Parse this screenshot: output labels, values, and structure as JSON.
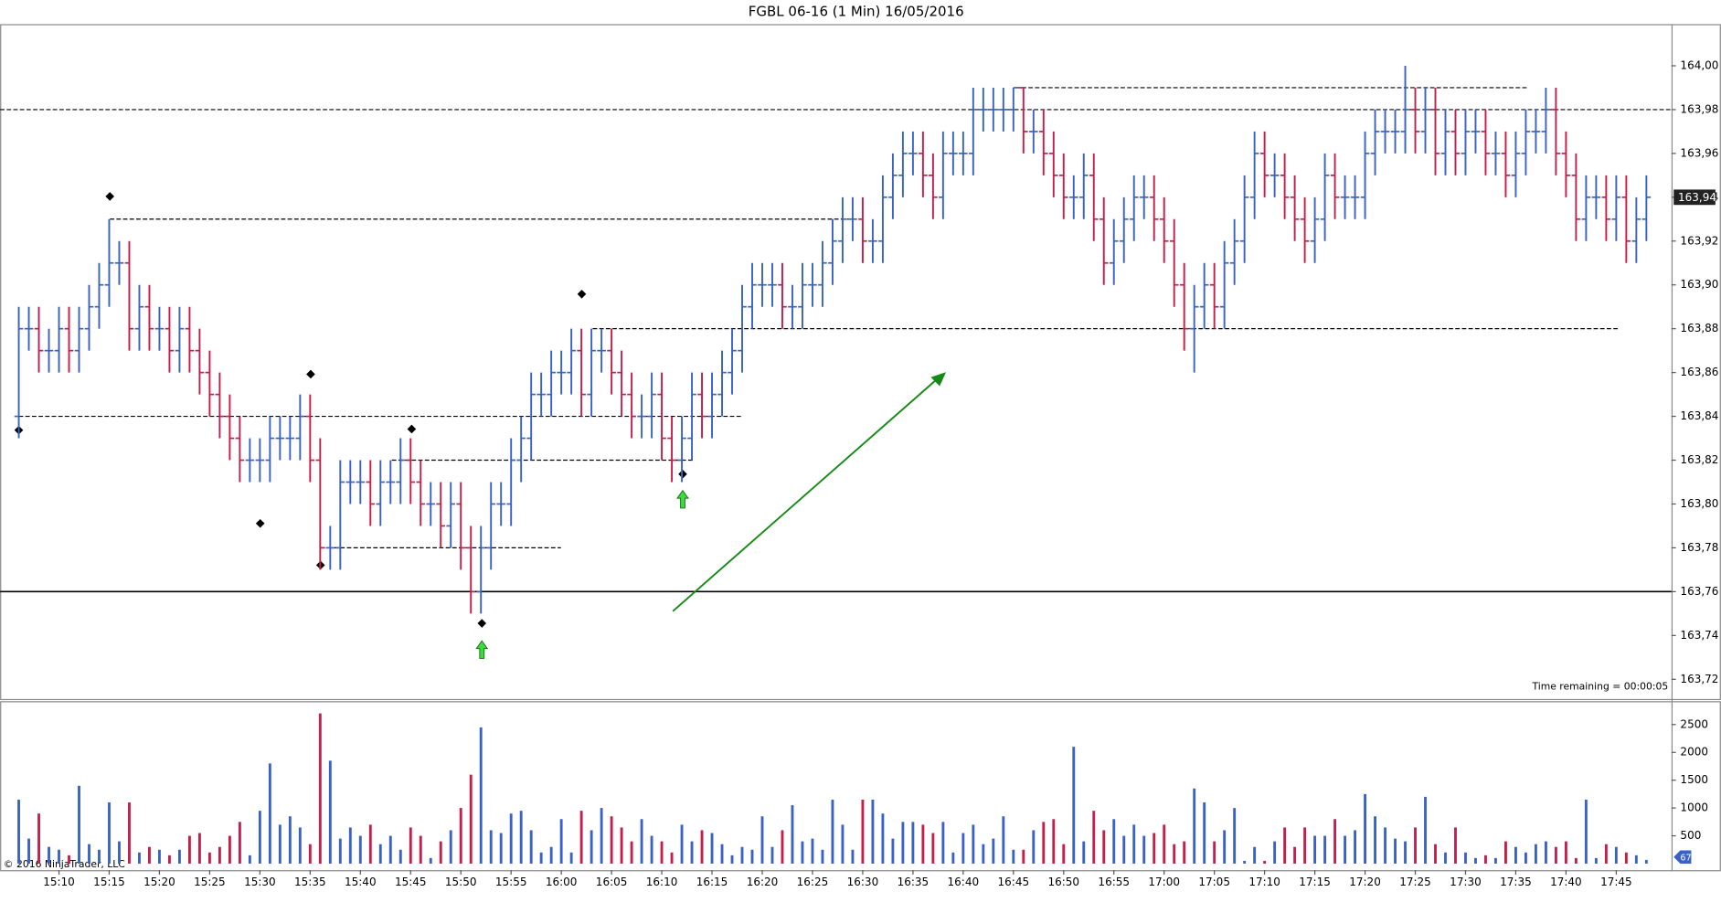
{
  "chart_data": {
    "type": "ohlc",
    "title": "FGBL 06-16 (1 Min)  16/05/2016",
    "categories": [
      null,
      null,
      null,
      null,
      "15:10",
      null,
      null,
      null,
      null,
      "15:15",
      null,
      null,
      null,
      null,
      "15:20",
      null,
      null,
      null,
      null,
      "15:25",
      null,
      null,
      null,
      null,
      "15:30",
      null,
      null,
      null,
      null,
      "15:35",
      null,
      null,
      null,
      null,
      "15:40",
      null,
      null,
      null,
      null,
      "15:45",
      null,
      null,
      null,
      null,
      "15:50",
      null,
      null,
      null,
      null,
      "15:55",
      null,
      null,
      null,
      null,
      "16:00",
      null,
      null,
      null,
      null,
      "16:05",
      null,
      null,
      null,
      null,
      "16:10",
      null,
      null,
      null,
      null,
      "16:15",
      null,
      null,
      null,
      null,
      "16:20",
      null,
      null,
      null,
      null,
      "16:25",
      null,
      null,
      null,
      null,
      "16:30",
      null,
      null,
      null,
      null,
      "16:35",
      null,
      null,
      null,
      null,
      "16:40",
      null,
      null,
      null,
      null,
      "16:45",
      null,
      null,
      null,
      null,
      "16:50",
      null,
      null,
      null,
      null,
      "16:55",
      null,
      null,
      null,
      null,
      "17:00",
      null,
      null,
      null,
      null,
      "17:05",
      null,
      null,
      null,
      null,
      "17:10",
      null,
      null,
      null,
      null,
      "17:15",
      null,
      null,
      null,
      null,
      "17:20",
      null,
      null,
      null,
      null,
      "17:25",
      null,
      null,
      null,
      null,
      "17:30",
      null,
      null,
      null,
      null,
      "17:35",
      null,
      null,
      null,
      null,
      "17:40",
      null,
      null,
      null,
      null,
      "17:45",
      null,
      null,
      null
    ],
    "open": [
      163.84,
      163.88,
      163.88,
      163.87,
      163.87,
      163.88,
      163.87,
      163.88,
      163.89,
      163.9,
      163.91,
      163.91,
      163.88,
      163.89,
      163.88,
      163.88,
      163.87,
      163.88,
      163.87,
      163.86,
      163.85,
      163.84,
      163.83,
      163.82,
      163.82,
      163.82,
      163.83,
      163.83,
      163.83,
      163.84,
      163.82,
      163.78,
      163.78,
      163.81,
      163.81,
      163.81,
      163.8,
      163.81,
      163.81,
      163.82,
      163.81,
      163.8,
      163.8,
      163.79,
      163.8,
      163.78,
      163.76,
      163.78,
      163.8,
      163.8,
      163.82,
      163.83,
      163.85,
      163.85,
      163.86,
      163.86,
      163.87,
      163.85,
      163.87,
      163.87,
      163.86,
      163.85,
      163.84,
      163.84,
      163.85,
      163.83,
      163.82,
      163.83,
      163.85,
      163.84,
      163.85,
      163.86,
      163.87,
      163.89,
      163.9,
      163.9,
      163.9,
      163.89,
      163.89,
      163.9,
      163.9,
      163.91,
      163.92,
      163.93,
      163.93,
      163.92,
      163.92,
      163.94,
      163.95,
      163.96,
      163.96,
      163.95,
      163.94,
      163.96,
      163.96,
      163.96,
      163.98,
      163.98,
      163.98,
      163.98,
      163.99,
      163.97,
      163.97,
      163.96,
      163.95,
      163.94,
      163.94,
      163.95,
      163.93,
      163.91,
      163.92,
      163.93,
      163.94,
      163.94,
      163.93,
      163.92,
      163.9,
      163.88,
      163.89,
      163.9,
      163.89,
      163.91,
      163.92,
      163.94,
      163.96,
      163.95,
      163.95,
      163.94,
      163.93,
      163.92,
      163.93,
      163.95,
      163.94,
      163.94,
      163.94,
      163.96,
      163.97,
      163.97,
      163.97,
      163.98,
      163.97,
      163.98,
      163.96,
      163.97,
      163.96,
      163.97,
      163.97,
      163.96,
      163.96,
      163.95,
      163.96,
      163.97,
      163.97,
      163.98,
      163.96,
      163.95,
      163.93,
      163.94,
      163.94,
      163.93,
      163.94,
      163.92,
      163.93
    ],
    "high": [
      163.89,
      163.89,
      163.89,
      163.88,
      163.89,
      163.89,
      163.89,
      163.9,
      163.91,
      163.93,
      163.92,
      163.92,
      163.9,
      163.9,
      163.89,
      163.89,
      163.89,
      163.89,
      163.88,
      163.87,
      163.86,
      163.85,
      163.84,
      163.83,
      163.83,
      163.84,
      163.84,
      163.84,
      163.85,
      163.85,
      163.83,
      163.79,
      163.82,
      163.82,
      163.82,
      163.82,
      163.82,
      163.82,
      163.83,
      163.83,
      163.82,
      163.81,
      163.81,
      163.81,
      163.81,
      163.79,
      163.79,
      163.81,
      163.81,
      163.83,
      163.84,
      163.86,
      163.86,
      163.87,
      163.87,
      163.88,
      163.88,
      163.88,
      163.88,
      163.88,
      163.87,
      163.86,
      163.85,
      163.86,
      163.86,
      163.84,
      163.84,
      163.86,
      163.86,
      163.86,
      163.87,
      163.88,
      163.9,
      163.91,
      163.91,
      163.91,
      163.91,
      163.9,
      163.91,
      163.91,
      163.92,
      163.93,
      163.94,
      163.94,
      163.94,
      163.93,
      163.95,
      163.96,
      163.97,
      163.97,
      163.97,
      163.96,
      163.97,
      163.97,
      163.97,
      163.99,
      163.99,
      163.99,
      163.99,
      163.99,
      163.99,
      163.98,
      163.98,
      163.97,
      163.96,
      163.95,
      163.96,
      163.96,
      163.94,
      163.93,
      163.94,
      163.95,
      163.95,
      163.95,
      163.94,
      163.93,
      163.91,
      163.9,
      163.91,
      163.91,
      163.92,
      163.93,
      163.95,
      163.97,
      163.97,
      163.96,
      163.96,
      163.95,
      163.94,
      163.94,
      163.96,
      163.96,
      163.95,
      163.95,
      163.97,
      163.98,
      163.98,
      163.98,
      164.0,
      163.99,
      163.99,
      163.99,
      163.98,
      163.98,
      163.98,
      163.98,
      163.98,
      163.97,
      163.97,
      163.97,
      163.98,
      163.98,
      163.99,
      163.99,
      163.97,
      163.96,
      163.95,
      163.95,
      163.95,
      163.95,
      163.95,
      163.94,
      163.95
    ],
    "low": [
      163.83,
      163.87,
      163.86,
      163.86,
      163.86,
      163.86,
      163.86,
      163.87,
      163.88,
      163.89,
      163.9,
      163.87,
      163.87,
      163.87,
      163.87,
      163.86,
      163.86,
      163.86,
      163.85,
      163.84,
      163.83,
      163.82,
      163.81,
      163.81,
      163.81,
      163.81,
      163.82,
      163.82,
      163.82,
      163.81,
      163.77,
      163.77,
      163.77,
      163.8,
      163.8,
      163.79,
      163.79,
      163.8,
      163.8,
      163.8,
      163.79,
      163.79,
      163.78,
      163.78,
      163.77,
      163.75,
      163.75,
      163.77,
      163.79,
      163.79,
      163.81,
      163.82,
      163.84,
      163.84,
      163.85,
      163.85,
      163.84,
      163.84,
      163.86,
      163.85,
      163.84,
      163.83,
      163.83,
      163.83,
      163.82,
      163.81,
      163.81,
      163.82,
      163.83,
      163.83,
      163.84,
      163.85,
      163.86,
      163.88,
      163.89,
      163.89,
      163.88,
      163.88,
      163.88,
      163.89,
      163.89,
      163.9,
      163.91,
      163.92,
      163.91,
      163.91,
      163.91,
      163.93,
      163.94,
      163.95,
      163.94,
      163.93,
      163.93,
      163.95,
      163.95,
      163.95,
      163.97,
      163.97,
      163.97,
      163.97,
      163.96,
      163.96,
      163.95,
      163.94,
      163.93,
      163.93,
      163.93,
      163.92,
      163.9,
      163.9,
      163.91,
      163.92,
      163.93,
      163.92,
      163.91,
      163.89,
      163.87,
      163.86,
      163.88,
      163.88,
      163.88,
      163.9,
      163.91,
      163.93,
      163.94,
      163.94,
      163.93,
      163.92,
      163.91,
      163.91,
      163.92,
      163.93,
      163.93,
      163.93,
      163.93,
      163.95,
      163.96,
      163.96,
      163.96,
      163.96,
      163.96,
      163.95,
      163.95,
      163.95,
      163.95,
      163.96,
      163.95,
      163.95,
      163.94,
      163.94,
      163.95,
      163.96,
      163.96,
      163.95,
      163.94,
      163.92,
      163.92,
      163.93,
      163.92,
      163.92,
      163.91,
      163.91,
      163.92
    ],
    "close": [
      163.88,
      163.88,
      163.87,
      163.87,
      163.88,
      163.87,
      163.88,
      163.89,
      163.9,
      163.91,
      163.91,
      163.88,
      163.89,
      163.88,
      163.88,
      163.87,
      163.88,
      163.87,
      163.86,
      163.85,
      163.84,
      163.83,
      163.82,
      163.82,
      163.82,
      163.83,
      163.83,
      163.83,
      163.84,
      163.82,
      163.78,
      163.78,
      163.81,
      163.81,
      163.81,
      163.8,
      163.81,
      163.81,
      163.82,
      163.81,
      163.8,
      163.8,
      163.79,
      163.8,
      163.78,
      163.76,
      163.78,
      163.8,
      163.8,
      163.82,
      163.83,
      163.85,
      163.85,
      163.86,
      163.86,
      163.87,
      163.85,
      163.87,
      163.87,
      163.86,
      163.85,
      163.84,
      163.84,
      163.85,
      163.83,
      163.82,
      163.83,
      163.85,
      163.84,
      163.85,
      163.86,
      163.87,
      163.89,
      163.9,
      163.9,
      163.9,
      163.89,
      163.89,
      163.9,
      163.9,
      163.91,
      163.92,
      163.93,
      163.93,
      163.92,
      163.92,
      163.94,
      163.95,
      163.96,
      163.96,
      163.95,
      163.94,
      163.96,
      163.96,
      163.96,
      163.98,
      163.98,
      163.98,
      163.98,
      163.99,
      163.97,
      163.97,
      163.96,
      163.95,
      163.94,
      163.94,
      163.95,
      163.93,
      163.91,
      163.92,
      163.93,
      163.94,
      163.94,
      163.93,
      163.92,
      163.9,
      163.88,
      163.89,
      163.9,
      163.89,
      163.91,
      163.92,
      163.94,
      163.96,
      163.95,
      163.95,
      163.94,
      163.93,
      163.92,
      163.93,
      163.95,
      163.94,
      163.94,
      163.94,
      163.96,
      163.97,
      163.97,
      163.97,
      163.98,
      163.97,
      163.98,
      163.96,
      163.97,
      163.96,
      163.97,
      163.97,
      163.96,
      163.96,
      163.95,
      163.96,
      163.97,
      163.97,
      163.98,
      163.96,
      163.95,
      163.93,
      163.94,
      163.94,
      163.93,
      163.94,
      163.92,
      163.93,
      163.94
    ],
    "up_color": "#3a62c6",
    "down_color": "#c41f4b",
    "ylim": [
      163.711,
      164.018
    ],
    "yticks": [
      {
        "value": 163.72,
        "label": "163,72"
      },
      {
        "value": 163.74,
        "label": "163,74"
      },
      {
        "value": 163.76,
        "label": "163,76"
      },
      {
        "value": 163.78,
        "label": "163,78"
      },
      {
        "value": 163.8,
        "label": "163,80"
      },
      {
        "value": 163.82,
        "label": "163,82"
      },
      {
        "value": 163.84,
        "label": "163,84"
      },
      {
        "value": 163.86,
        "label": "163,86"
      },
      {
        "value": 163.88,
        "label": "163,88"
      },
      {
        "value": 163.9,
        "label": "163,90"
      },
      {
        "value": 163.92,
        "label": "163,92"
      },
      {
        "value": 163.94,
        "label": "163,94"
      },
      {
        "value": 163.96,
        "label": "163,96"
      },
      {
        "value": 163.98,
        "label": "163,98"
      },
      {
        "value": 164.0,
        "label": "164,00"
      }
    ],
    "current_price": {
      "value": 163.94,
      "label": "163,94"
    },
    "time_remaining": "Time remaining = 00:00:05",
    "volume": {
      "values": [
        1150,
        450,
        900,
        300,
        250,
        150,
        1400,
        350,
        250,
        1100,
        400,
        1100,
        200,
        300,
        250,
        150,
        250,
        500,
        550,
        200,
        300,
        500,
        750,
        150,
        950,
        1800,
        700,
        850,
        650,
        350,
        2700,
        1850,
        450,
        650,
        500,
        700,
        350,
        500,
        250,
        650,
        500,
        100,
        400,
        600,
        1000,
        1600,
        2450,
        600,
        550,
        900,
        950,
        600,
        200,
        300,
        800,
        200,
        950,
        600,
        1000,
        850,
        650,
        400,
        800,
        500,
        400,
        200,
        700,
        400,
        600,
        550,
        350,
        150,
        300,
        250,
        850,
        300,
        600,
        1050,
        400,
        450,
        250,
        1150,
        700,
        250,
        1150,
        1150,
        900,
        450,
        750,
        750,
        700,
        550,
        750,
        200,
        550,
        700,
        350,
        450,
        850,
        250,
        250,
        600,
        750,
        800,
        350,
        2100,
        400,
        950,
        600,
        800,
        500,
        700,
        500,
        550,
        700,
        350,
        400,
        1350,
        1100,
        400,
        600,
        1000,
        50,
        300,
        50,
        400,
        650,
        300,
        650,
        500,
        500,
        800,
        500,
        600,
        1250,
        850,
        650,
        450,
        400,
        650,
        1200,
        350,
        200,
        650,
        200,
        100,
        150,
        100,
        400,
        300,
        200,
        350,
        400,
        300,
        400,
        100,
        1150,
        100,
        350,
        300,
        200,
        150,
        67
      ],
      "ylim": [
        0,
        2900
      ],
      "yticks": [
        500,
        1000,
        1500,
        2000,
        2500
      ]
    },
    "copyright": "© 2016 NinjaTrader, LLC"
  }
}
